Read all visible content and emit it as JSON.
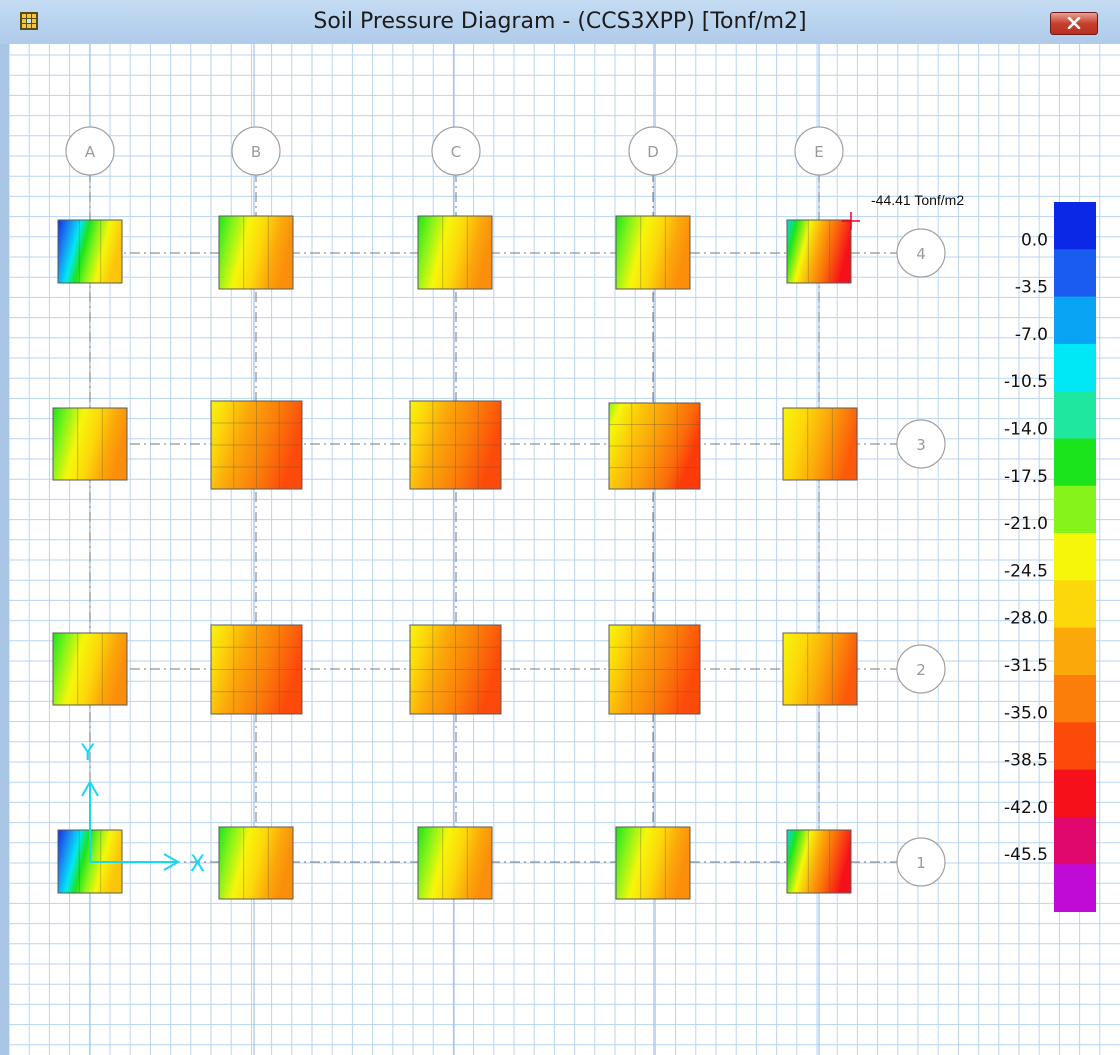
{
  "window": {
    "title": "Soil Pressure Diagram - (CCS3XPP)  [Tonf/m2]",
    "icon": "grid-app-icon",
    "close_icon": "close-icon"
  },
  "plan": {
    "grid_lines_x": [
      {
        "label": "A"
      },
      {
        "label": "B"
      },
      {
        "label": "C"
      },
      {
        "label": "D"
      },
      {
        "label": "E"
      }
    ],
    "grid_lines_y": [
      {
        "label": "4"
      },
      {
        "label": "3"
      },
      {
        "label": "2"
      },
      {
        "label": "1"
      }
    ],
    "axes": {
      "x_label": "X",
      "y_label": "Y",
      "color": "#19d7ee"
    },
    "annotation": "-44.41 Tonf/m2",
    "annotation_marker_color": "#e8002a"
  },
  "legend": {
    "ticks": [
      "0.0",
      "-3.5",
      "-7.0",
      "-10.5",
      "-14.0",
      "-17.5",
      "-21.0",
      "-24.5",
      "-28.0",
      "-31.5",
      "-35.0",
      "-38.5",
      "-42.0",
      "-45.5"
    ],
    "colors": [
      "#0a28e6",
      "#1a5cf0",
      "#0aa4f5",
      "#00e8f5",
      "#1ee8a0",
      "#1ce41c",
      "#86f41a",
      "#f6f60a",
      "#fcd70a",
      "#fba80a",
      "#fb7e0a",
      "#fc4a0a",
      "#f6101a",
      "#e0086c",
      "#c00ad6"
    ]
  }
}
